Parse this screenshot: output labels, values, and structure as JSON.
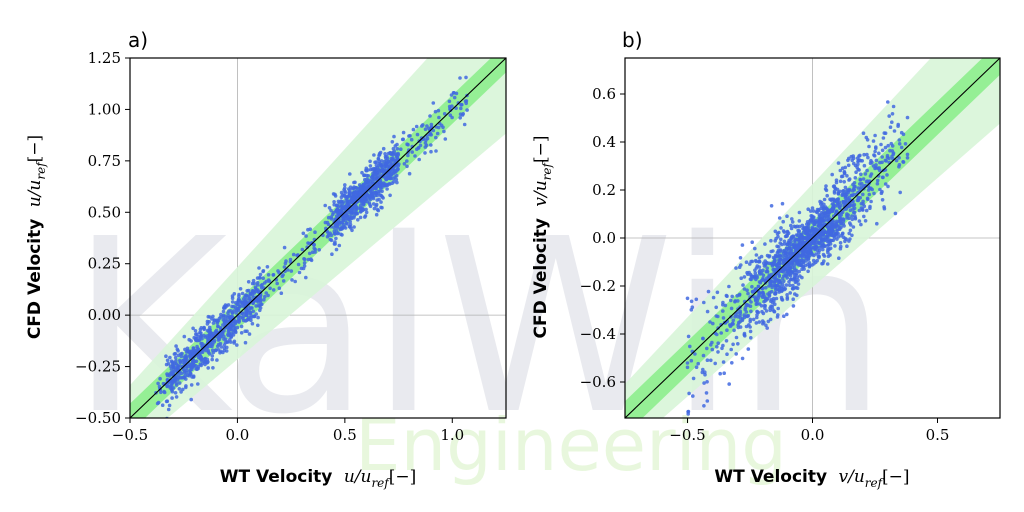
{
  "watermark": {
    "main": "KalWin",
    "sub": "Engineering"
  },
  "colors": {
    "points": "#4169e1",
    "band_inner": "#90ee90",
    "band_outer": "#d8f5d8",
    "diagonal": "#000000"
  },
  "chart_data": [
    {
      "type": "scatter",
      "panel_label": "a)",
      "xlabel": {
        "bold": "WT Velocity",
        "var": "u/u",
        "sub": "ref",
        "unit": "[−]"
      },
      "ylabel": {
        "bold": "CFD Velocity",
        "var": "u/u",
        "sub": "ref",
        "unit": "[−]"
      },
      "xlim": [
        -0.5,
        1.25
      ],
      "ylim": [
        -0.5,
        1.25
      ],
      "xticks": [
        -0.5,
        0.0,
        0.5,
        1.0
      ],
      "xtick_labels": [
        "−0.5",
        "0.0",
        "0.5",
        "1.0"
      ],
      "yticks": [
        -0.5,
        -0.25,
        0.0,
        0.25,
        0.5,
        0.75,
        1.0,
        1.25
      ],
      "ytick_labels": [
        "−0.50",
        "−0.25",
        "0.00",
        "0.25",
        "0.50",
        "0.75",
        "1.00",
        "1.25"
      ],
      "grid_zero_lines": true,
      "diagonal": "y = x",
      "band_inner_half_width": 0.07,
      "band_outer_half_width": 0.13,
      "points_range": {
        "x": [
          -0.38,
          1.07
        ],
        "y_spread": 0.06
      },
      "n_points": 1500
    },
    {
      "type": "scatter",
      "panel_label": "b)",
      "xlabel": {
        "bold": "WT Velocity",
        "var": "v/u",
        "sub": "ref",
        "unit": "[−]"
      },
      "ylabel": {
        "bold": "CFD Velocity",
        "var": "v/u",
        "sub": "ref",
        "unit": "[−]"
      },
      "xlim": [
        -0.75,
        0.75
      ],
      "ylim": [
        -0.75,
        0.75
      ],
      "xticks": [
        -0.5,
        0.0,
        0.5
      ],
      "xtick_labels": [
        "−0.5",
        "0.0",
        "0.5"
      ],
      "yticks": [
        -0.6,
        -0.4,
        -0.2,
        0.0,
        0.2,
        0.4,
        0.6
      ],
      "ytick_labels": [
        "−0.6",
        "−0.4",
        "−0.2",
        "0.0",
        "0.2",
        "0.4",
        "0.6"
      ],
      "grid_zero_lines": true,
      "diagonal": "y = x",
      "band_inner_half_width": 0.07,
      "band_outer_half_width": 0.12,
      "points_range": {
        "x": [
          -0.5,
          0.38
        ],
        "y_spread": 0.06
      },
      "n_points": 1500
    }
  ]
}
